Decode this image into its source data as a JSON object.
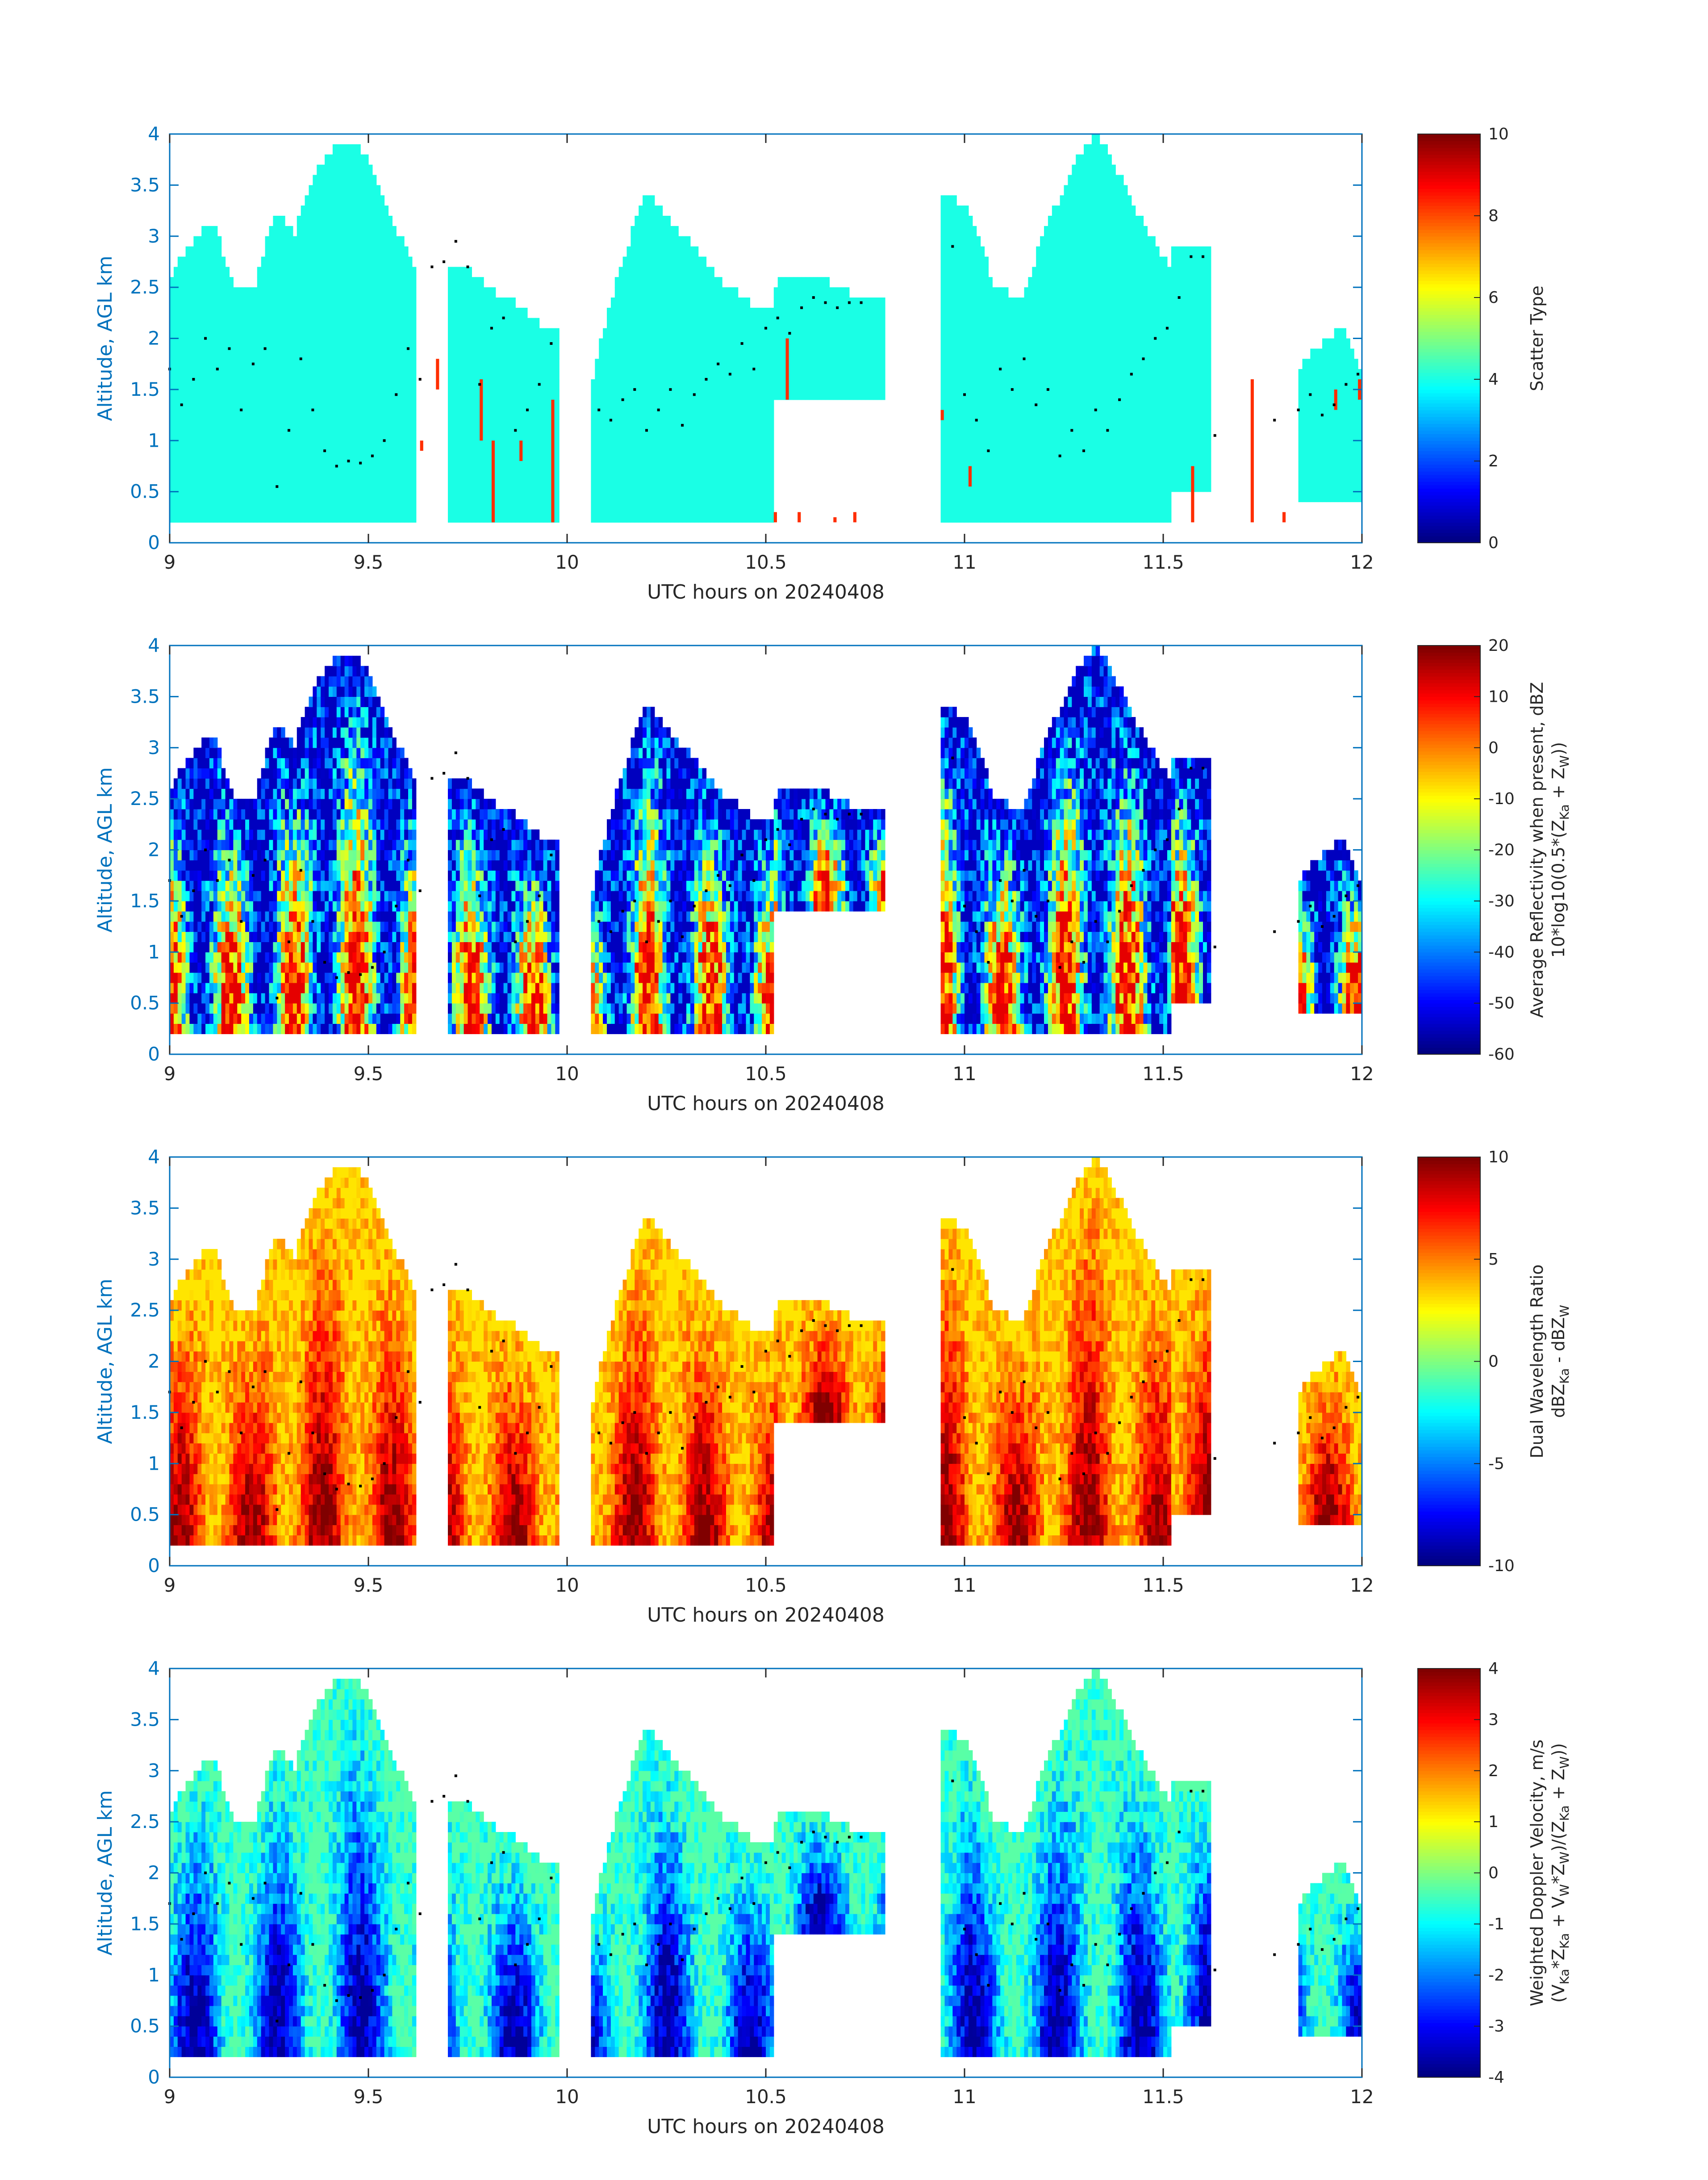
{
  "figure": {
    "panel_count": 4
  },
  "chart_data": [
    {
      "type": "heatmap",
      "title": "",
      "xlabel": "UTC hours on 20240408",
      "ylabel": "Altitude, AGL km",
      "xlim": [
        9,
        12
      ],
      "ylim": [
        0,
        4
      ],
      "xticks": [
        "9",
        "9.5",
        "10",
        "10.5",
        "11",
        "11.5",
        "12"
      ],
      "yticks": [
        "0",
        "0.5",
        "1",
        "1.5",
        "2",
        "2.5",
        "3",
        "3.5",
        "4"
      ],
      "colorbar": {
        "label_lines": [
          "Scatter Type"
        ],
        "range": [
          0,
          10
        ],
        "ticks": [
          "0",
          "2",
          "4",
          "6",
          "8",
          "10"
        ],
        "colormap": "jet"
      },
      "field": "scatter_type",
      "dominant_values": {
        "cloud": 4.0,
        "precip_or_other": 8.3
      },
      "cloud_segments": [
        {
          "x": [
            9.0,
            9.62
          ],
          "top_km": [
            2.6,
            2.9,
            3.1,
            2.5,
            2.4,
            3.2,
            3.0,
            3.6,
            3.85,
            3.9,
            3.5,
            3.0,
            2.6
          ],
          "base_km": 0.2
        },
        {
          "x": [
            9.7,
            9.98
          ],
          "top_km": [
            2.7,
            2.6,
            2.4,
            2.3,
            2.1,
            2.0
          ],
          "base_km": 0.2
        },
        {
          "x": [
            10.06,
            10.52
          ],
          "top_km": [
            1.6,
            2.6,
            3.4,
            3.1,
            2.8,
            2.5,
            2.3,
            2.2
          ],
          "base_km": 0.2
        },
        {
          "x": [
            10.52,
            10.8
          ],
          "top_km": [
            2.5,
            2.6,
            2.5,
            2.35,
            2.3
          ],
          "base_km": 1.4
        },
        {
          "x": [
            10.94,
            11.52
          ],
          "top_km": [
            3.4,
            3.2,
            2.5,
            2.3,
            3.0,
            3.6,
            4.0,
            3.5,
            3.0,
            2.6
          ],
          "base_km": 0.2
        },
        {
          "x": [
            11.52,
            11.62
          ],
          "top_km": [
            2.9,
            2.8
          ],
          "base_km": 0.5
        },
        {
          "x": [
            11.84,
            12.0
          ],
          "top_km": [
            1.7,
            1.9,
            2.1,
            1.6
          ],
          "base_km": 0.4
        }
      ],
      "highlight_bands": [
        {
          "x": 9.63,
          "bottom_km": 0.9,
          "top_km": 1.0
        },
        {
          "x": 9.67,
          "bottom_km": 1.5,
          "top_km": 1.8
        },
        {
          "x": 9.78,
          "bottom_km": 1.0,
          "top_km": 1.6
        },
        {
          "x": 9.81,
          "bottom_km": 0.2,
          "top_km": 1.0
        },
        {
          "x": 9.88,
          "bottom_km": 0.8,
          "top_km": 1.0
        },
        {
          "x": 9.96,
          "bottom_km": 0.2,
          "top_km": 1.4
        },
        {
          "x": 10.52,
          "bottom_km": 0.2,
          "top_km": 0.3
        },
        {
          "x": 10.55,
          "bottom_km": 1.4,
          "top_km": 2.0
        },
        {
          "x": 10.58,
          "bottom_km": 0.2,
          "top_km": 0.3
        },
        {
          "x": 10.67,
          "bottom_km": 0.2,
          "top_km": 0.25
        },
        {
          "x": 10.72,
          "bottom_km": 0.2,
          "top_km": 0.3
        },
        {
          "x": 10.94,
          "bottom_km": 1.2,
          "top_km": 1.3
        },
        {
          "x": 11.01,
          "bottom_km": 0.55,
          "top_km": 0.75
        },
        {
          "x": 11.57,
          "bottom_km": 0.2,
          "top_km": 0.75
        },
        {
          "x": 11.72,
          "bottom_km": 0.2,
          "top_km": 1.6
        },
        {
          "x": 11.8,
          "bottom_km": 0.2,
          "top_km": 0.3
        },
        {
          "x": 11.93,
          "bottom_km": 1.3,
          "top_km": 1.5
        },
        {
          "x": 11.99,
          "bottom_km": 1.4,
          "top_km": 1.6
        }
      ],
      "marker_trace": {
        "x": [
          9.0,
          9.03,
          9.06,
          9.09,
          9.12,
          9.15,
          9.18,
          9.21,
          9.24,
          9.27,
          9.3,
          9.33,
          9.36,
          9.39,
          9.42,
          9.45,
          9.48,
          9.51,
          9.54,
          9.57,
          9.6,
          9.63,
          9.66,
          9.69,
          9.72,
          9.75,
          9.78,
          9.81,
          9.84,
          9.87,
          9.9,
          9.93,
          9.96,
          10.08,
          10.11,
          10.14,
          10.17,
          10.2,
          10.23,
          10.26,
          10.29,
          10.32,
          10.35,
          10.38,
          10.41,
          10.44,
          10.47,
          10.5,
          10.53,
          10.56,
          10.59,
          10.62,
          10.65,
          10.68,
          10.71,
          10.74,
          10.97,
          11.0,
          11.03,
          11.06,
          11.09,
          11.12,
          11.15,
          11.18,
          11.21,
          11.24,
          11.27,
          11.3,
          11.33,
          11.36,
          11.39,
          11.42,
          11.45,
          11.48,
          11.51,
          11.54,
          11.57,
          11.6,
          11.63,
          11.66,
          11.69,
          11.72,
          11.75,
          11.78,
          11.81,
          11.84,
          11.87,
          11.9,
          11.93,
          11.96,
          11.99
        ],
        "y_km": [
          1.7,
          1.35,
          1.6,
          2.0,
          1.7,
          1.9,
          1.3,
          1.75,
          1.9,
          0.55,
          1.1,
          1.8,
          1.3,
          0.9,
          0.75,
          0.8,
          0.78,
          0.85,
          1.0,
          1.45,
          1.9,
          1.6,
          2.7,
          2.75,
          2.95,
          2.7,
          1.55,
          2.1,
          2.2,
          1.1,
          1.3,
          1.55,
          1.95,
          1.3,
          1.2,
          1.4,
          1.5,
          1.1,
          1.3,
          1.5,
          1.15,
          1.45,
          1.6,
          1.75,
          1.65,
          1.95,
          1.7,
          2.1,
          2.2,
          2.05,
          2.3,
          2.4,
          2.35,
          2.3,
          2.35,
          2.35,
          2.9,
          1.45,
          1.2,
          0.9,
          1.7,
          1.5,
          1.8,
          1.35,
          1.5,
          0.85,
          1.1,
          0.9,
          1.3,
          1.1,
          1.4,
          1.65,
          1.8,
          2.0,
          2.1,
          2.4,
          2.8,
          2.8,
          1.05,
          null,
          null,
          null,
          null,
          1.2,
          null,
          1.3,
          1.45,
          1.25,
          1.35,
          1.55,
          1.65
        ]
      }
    },
    {
      "type": "heatmap",
      "title": "",
      "xlabel": "UTC hours on 20240408",
      "ylabel": "Altitude, AGL km",
      "xlim": [
        9,
        12
      ],
      "ylim": [
        0,
        4
      ],
      "xticks": [
        "9",
        "9.5",
        "10",
        "10.5",
        "11",
        "11.5",
        "12"
      ],
      "yticks": [
        "0",
        "0.5",
        "1",
        "1.5",
        "2",
        "2.5",
        "3",
        "3.5",
        "4"
      ],
      "colorbar": {
        "label_lines": [
          "Average Reflectivity when present, dBZ",
          "10*log10(0.5*(Z",
          "Ka",
          " + Z",
          "W",
          "))"
        ],
        "range": [
          -60,
          20
        ],
        "ticks": [
          "-60",
          "-50",
          "-40",
          "-30",
          "-20",
          "-10",
          "0",
          "10",
          "20"
        ],
        "colormap": "jet"
      },
      "field": "reflectivity_dBZ",
      "core_value": 12,
      "edge_value": -55
    },
    {
      "type": "heatmap",
      "title": "",
      "xlabel": "UTC hours on 20240408",
      "ylabel": "Altitude, AGL km",
      "xlim": [
        9,
        12
      ],
      "ylim": [
        0,
        4
      ],
      "xticks": [
        "9",
        "9.5",
        "10",
        "10.5",
        "11",
        "11.5",
        "12"
      ],
      "yticks": [
        "0",
        "0.5",
        "1",
        "1.5",
        "2",
        "2.5",
        "3",
        "3.5",
        "4"
      ],
      "colorbar": {
        "label_lines": [
          "Dual Wavelength Ratio",
          "dBZ",
          "Ka",
          " - dBZ",
          "W"
        ],
        "range": [
          -10,
          10
        ],
        "ticks": [
          "-10",
          "-5",
          "0",
          "5",
          "10"
        ],
        "colormap": "jet"
      },
      "field": "dual_wavelength_ratio_dB",
      "core_value": 10,
      "edge_value": 3
    },
    {
      "type": "heatmap",
      "title": "",
      "xlabel": "UTC hours on 20240408",
      "ylabel": "Altitude, AGL km",
      "xlim": [
        9,
        12
      ],
      "ylim": [
        0,
        4
      ],
      "xticks": [
        "9",
        "9.5",
        "10",
        "10.5",
        "11",
        "11.5",
        "12"
      ],
      "yticks": [
        "0",
        "0.5",
        "1",
        "1.5",
        "2",
        "2.5",
        "3",
        "3.5",
        "4"
      ],
      "colorbar": {
        "label_lines": [
          "Weighted Doppler Velocity, m/s",
          "(V",
          "Ka",
          "*Z",
          "Ka",
          " + V",
          "W",
          "*Z",
          "W",
          ")/(Z",
          "Ka",
          " + Z",
          "W",
          "))"
        ],
        "range": [
          -4,
          4
        ],
        "ticks": [
          "-4",
          "-3",
          "-2",
          "-1",
          "0",
          "1",
          "2",
          "3",
          "4"
        ],
        "colormap": "jet"
      },
      "field": "doppler_velocity_ms",
      "core_value": -3.8,
      "edge_value": -0.3
    }
  ]
}
